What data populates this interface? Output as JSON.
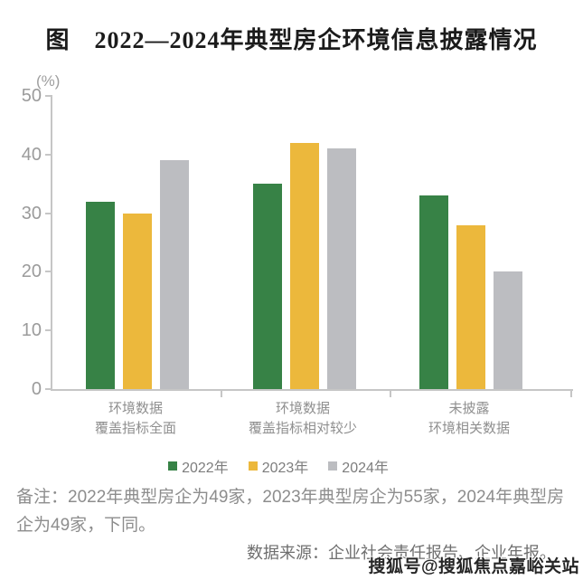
{
  "title": "图　2022—2024年典型房企环境信息披露情况",
  "chart_data": {
    "type": "bar",
    "title": "图 2022—2024年典型房企环境信息披露情况",
    "unit_label": "(%)",
    "xlabel": "",
    "ylabel": "%",
    "ylim": [
      0,
      50
    ],
    "yticks": [
      0,
      10,
      20,
      30,
      40,
      50
    ],
    "grid": false,
    "legend_position": "bottom",
    "categories": [
      "环境数据\n覆盖指标全面",
      "环境数据\n覆盖指标相对较少",
      "未披露\n环境相关数据"
    ],
    "series": [
      {
        "name": "2022年",
        "color": "#378246",
        "values": [
          32,
          35,
          33
        ]
      },
      {
        "name": "2023年",
        "color": "#ECB83C",
        "values": [
          30,
          42,
          28
        ]
      },
      {
        "name": "2024年",
        "color": "#BCBDC1",
        "values": [
          39,
          41,
          20
        ]
      }
    ],
    "axis_color": "#C6C6C6"
  },
  "note": "备注：2022年典型房企为49家，2023年典型房企为55家，2024年典型房企为49家，下同。",
  "source": "数据来源：企业社会责任报告、企业年报。",
  "watermark": "搜狐号@搜狐焦点嘉峪关站"
}
